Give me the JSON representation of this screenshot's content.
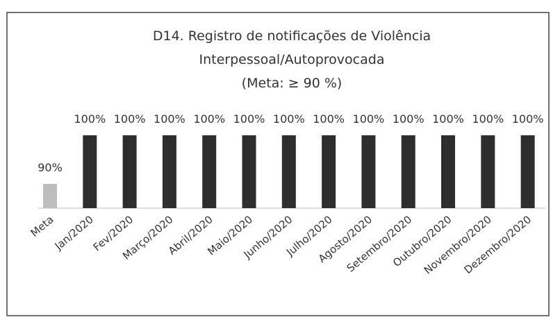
{
  "chart_data": {
    "type": "bar",
    "title": [
      "D14. Registro de notificações de Violência",
      "Interpessoal/Autoprovocada",
      "(Meta: ≥ 90 %)"
    ],
    "categories": [
      "Meta",
      "Jan/2020",
      "Fev/2020",
      "Março/2020",
      "Abril/2020",
      "Maio/2020",
      "Junho/2020",
      "Julho/2020",
      "Agosto/2020",
      "Setembro/2020",
      "Outubro/2020",
      "Novembro/2020",
      "Dezembro/2020"
    ],
    "values": [
      90,
      100,
      100,
      100,
      100,
      100,
      100,
      100,
      100,
      100,
      100,
      100,
      100
    ],
    "value_labels": [
      "90%",
      "100%",
      "100%",
      "100%",
      "100%",
      "100%",
      "100%",
      "100%",
      "100%",
      "100%",
      "100%",
      "100%",
      "100%"
    ],
    "colors": [
      "#bdbdbd",
      "#2e2e2e",
      "#2e2e2e",
      "#2e2e2e",
      "#2e2e2e",
      "#2e2e2e",
      "#2e2e2e",
      "#2e2e2e",
      "#2e2e2e",
      "#2e2e2e",
      "#2e2e2e",
      "#2e2e2e",
      "#2e2e2e"
    ],
    "ylim": [
      85,
      101
    ]
  }
}
